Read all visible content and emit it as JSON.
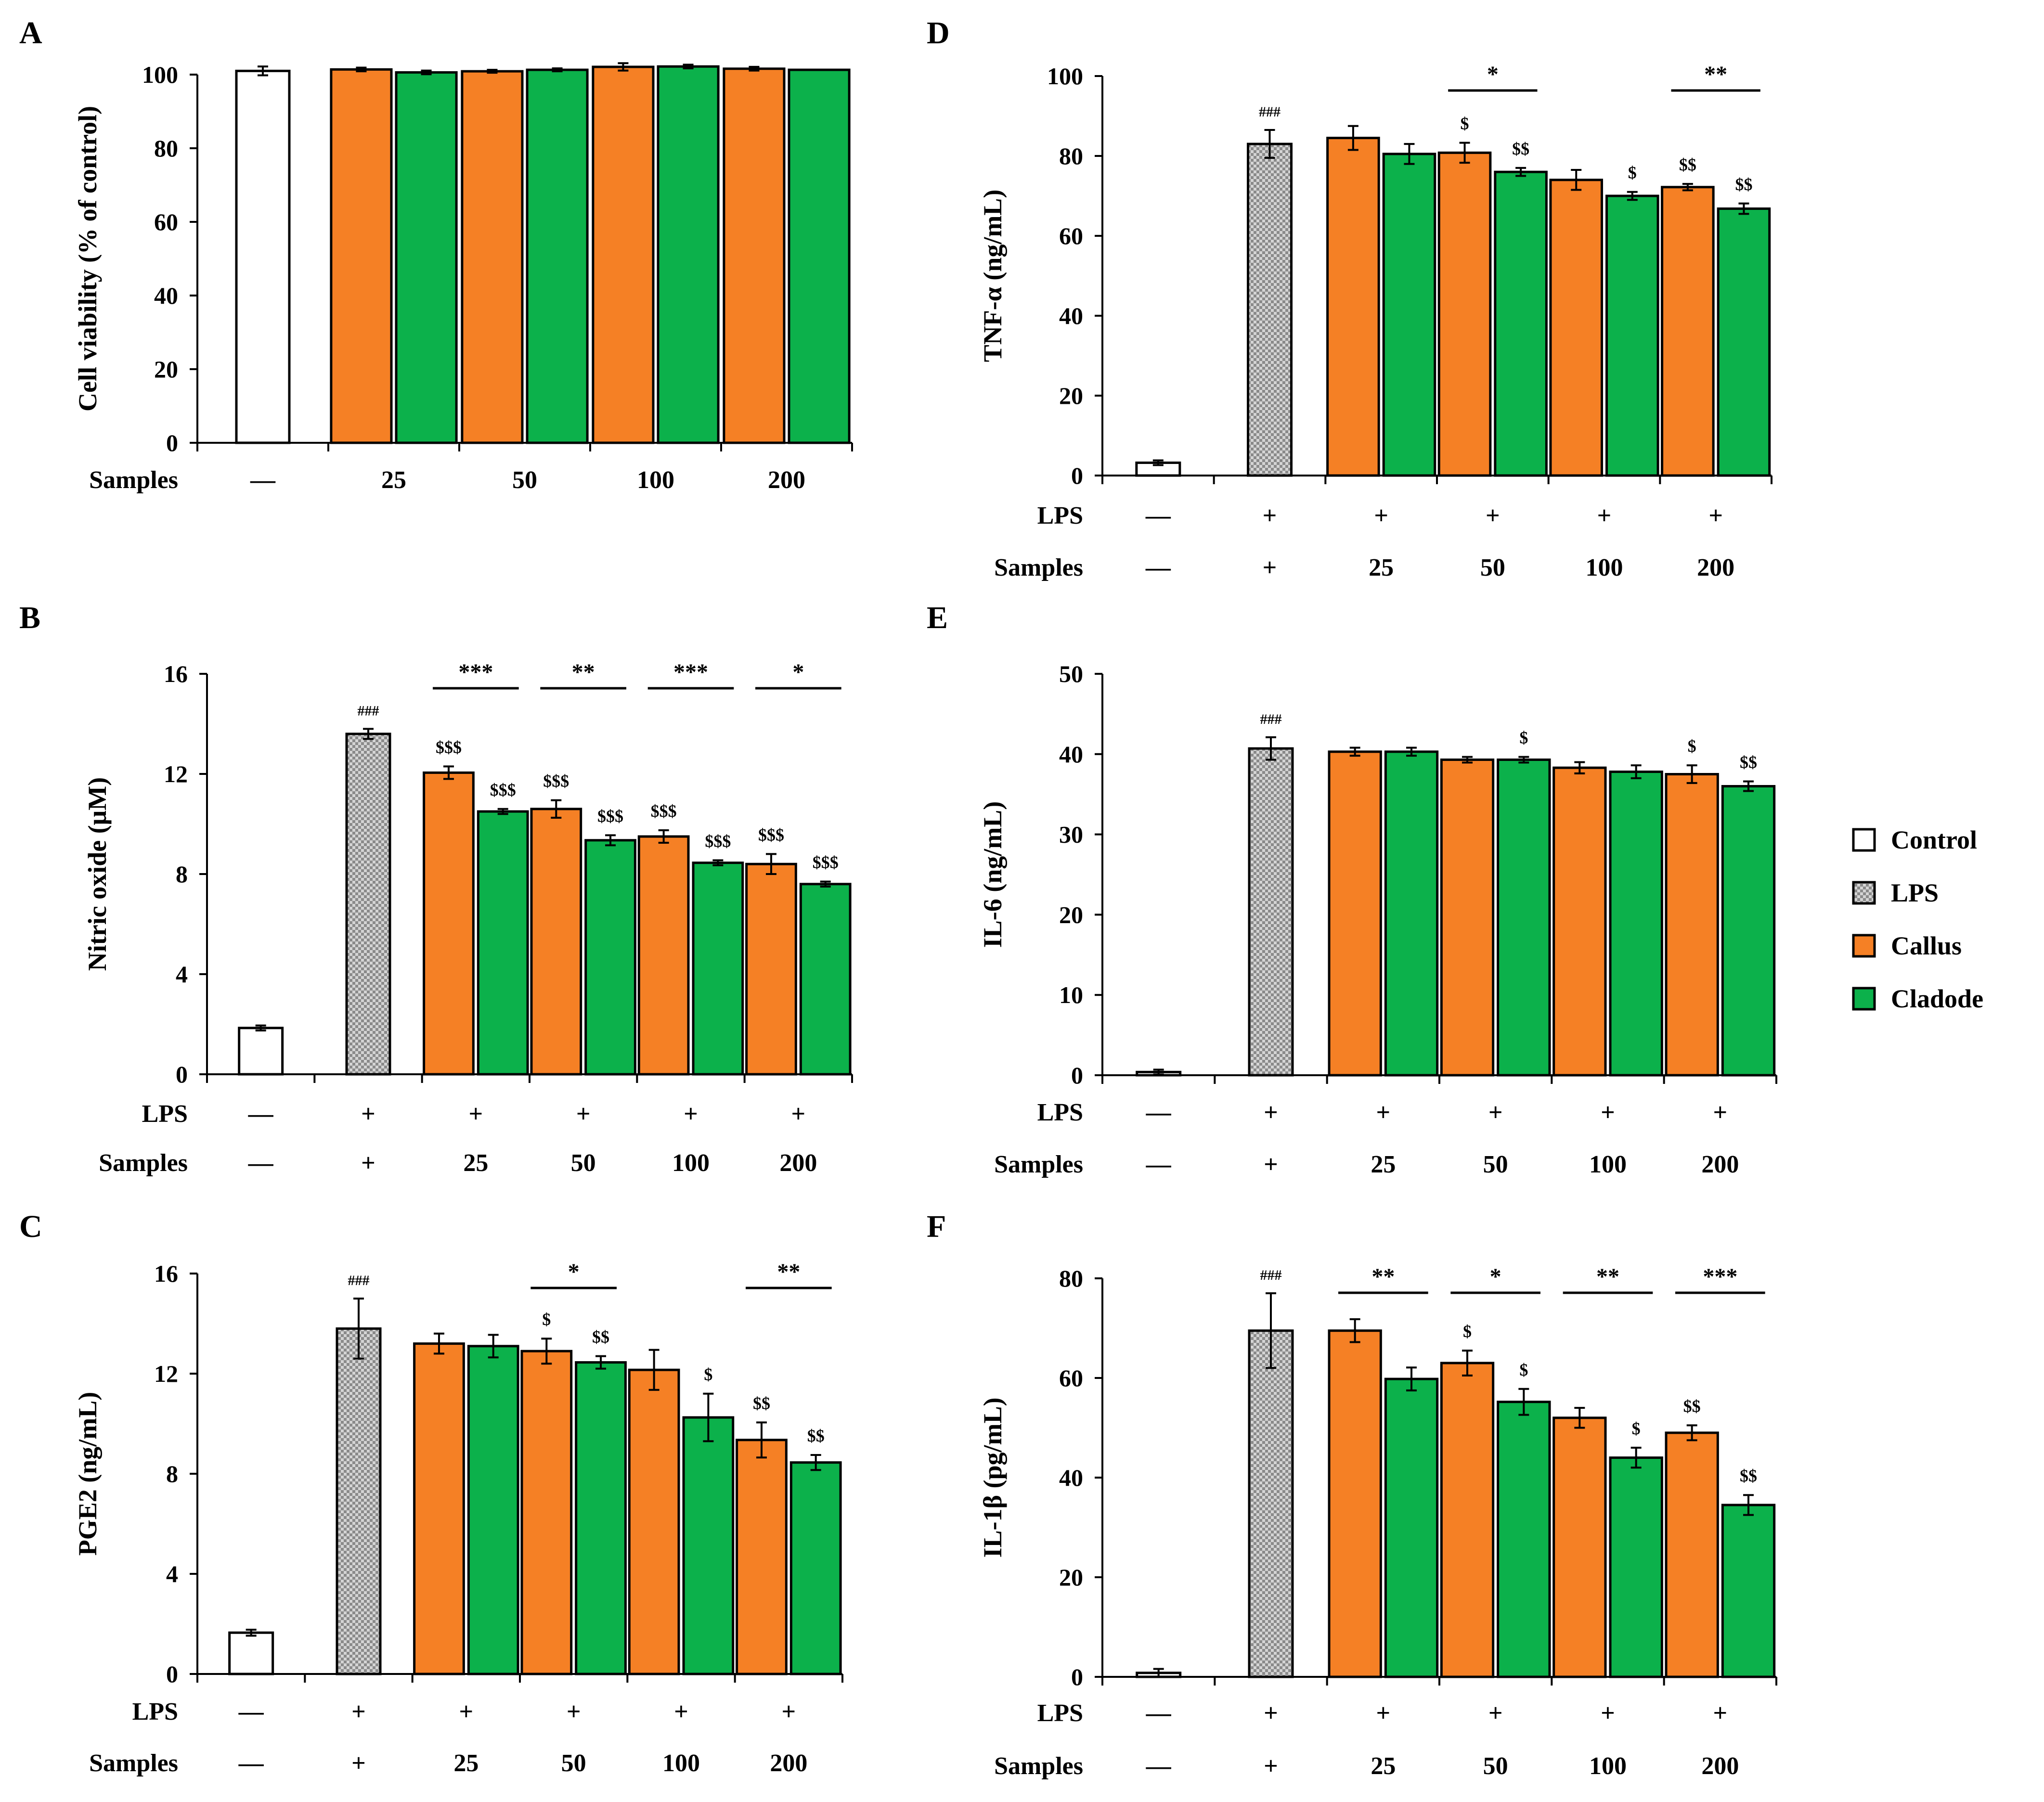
{
  "colors": {
    "control": "#ffffff",
    "lps": "#b9b9b9",
    "callus": "#f58025",
    "cladode": "#0cb14b",
    "outline": "#000000"
  },
  "legend": {
    "items": [
      {
        "label": "Control",
        "color": "#ffffff",
        "pattern": "none"
      },
      {
        "label": "LPS",
        "color": "#b9b9b9",
        "pattern": "checker"
      },
      {
        "label": "Callus",
        "color": "#f58025",
        "pattern": "none"
      },
      {
        "label": "Cladode",
        "color": "#0cb14b",
        "pattern": "none"
      }
    ]
  },
  "chart_data": [
    {
      "type": "bar",
      "panel": "A",
      "ylabel": "Cell viability (% of control)",
      "ylim": [
        0,
        100
      ],
      "yticks": [
        0,
        20,
        40,
        60,
        80,
        100
      ],
      "groups": [
        {
          "bars": [
            {
              "series": "Control",
              "value": 101,
              "err": 1.2
            }
          ]
        },
        {
          "bars": [
            {
              "series": "Callus",
              "value": 101.4,
              "err": 0.5
            },
            {
              "series": "Cladode",
              "value": 100.6,
              "err": 0.5
            }
          ]
        },
        {
          "bars": [
            {
              "series": "Callus",
              "value": 100.9,
              "err": 0.4
            },
            {
              "series": "Cladode",
              "value": 101.3,
              "err": 0.4
            }
          ]
        },
        {
          "bars": [
            {
              "series": "Callus",
              "value": 102.1,
              "err": 1.0
            },
            {
              "series": "Cladode",
              "value": 102.2,
              "err": 0.5
            }
          ]
        },
        {
          "bars": [
            {
              "series": "Callus",
              "value": 101.6,
              "err": 0.5
            },
            {
              "series": "Cladode",
              "value": 101.3,
              "err": 0
            }
          ]
        }
      ],
      "rows": [
        {
          "label": "Samples",
          "values": [
            "—",
            "25",
            "50",
            "100",
            "200"
          ]
        }
      ],
      "sig_lines": []
    },
    {
      "type": "bar",
      "panel": "B",
      "ylabel": "Nitric oxide (μM)",
      "ylim": [
        0,
        16
      ],
      "yticks": [
        0,
        4,
        8,
        12,
        16
      ],
      "groups": [
        {
          "bars": [
            {
              "series": "Control",
              "value": 1.85,
              "err": 0.1
            }
          ]
        },
        {
          "bars": [
            {
              "series": "LPS",
              "value": 13.6,
              "err": 0.2,
              "mark": "###"
            }
          ]
        },
        {
          "bars": [
            {
              "series": "Callus",
              "value": 12.05,
              "err": 0.25,
              "mark": "$$$"
            },
            {
              "series": "Cladode",
              "value": 10.5,
              "err": 0.1,
              "mark": "$$$"
            }
          ]
        },
        {
          "bars": [
            {
              "series": "Callus",
              "value": 10.6,
              "err": 0.35,
              "mark": "$$$"
            },
            {
              "series": "Cladode",
              "value": 9.35,
              "err": 0.2,
              "mark": "$$$"
            }
          ]
        },
        {
          "bars": [
            {
              "series": "Callus",
              "value": 9.5,
              "err": 0.25,
              "mark": "$$$"
            },
            {
              "series": "Cladode",
              "value": 8.45,
              "err": 0.1,
              "mark": "$$$"
            }
          ]
        },
        {
          "bars": [
            {
              "series": "Callus",
              "value": 8.4,
              "err": 0.4,
              "mark": "$$$"
            },
            {
              "series": "Cladode",
              "value": 7.6,
              "err": 0.1,
              "mark": "$$$"
            }
          ]
        }
      ],
      "rows": [
        {
          "label": "LPS",
          "values": [
            "—",
            "+",
            "+",
            "+",
            "+",
            "+"
          ]
        },
        {
          "label": "Samples",
          "values": [
            "—",
            "+",
            "25",
            "50",
            "100",
            "200"
          ]
        }
      ],
      "sig_lines": [
        {
          "group": 2,
          "text": "***"
        },
        {
          "group": 3,
          "text": "**"
        },
        {
          "group": 4,
          "text": "***"
        },
        {
          "group": 5,
          "text": "*"
        }
      ]
    },
    {
      "type": "bar",
      "panel": "C",
      "ylabel": "PGE2 (ng/mL)",
      "ylim": [
        0,
        16
      ],
      "yticks": [
        0,
        4,
        8,
        12,
        16
      ],
      "groups": [
        {
          "bars": [
            {
              "series": "Control",
              "value": 1.65,
              "err": 0.12
            }
          ]
        },
        {
          "bars": [
            {
              "series": "LPS",
              "value": 13.8,
              "err": 1.2,
              "mark": "###"
            }
          ]
        },
        {
          "bars": [
            {
              "series": "Callus",
              "value": 13.2,
              "err": 0.4
            },
            {
              "series": "Cladode",
              "value": 13.1,
              "err": 0.45
            }
          ]
        },
        {
          "bars": [
            {
              "series": "Callus",
              "value": 12.9,
              "err": 0.5,
              "mark": "$"
            },
            {
              "series": "Cladode",
              "value": 12.45,
              "err": 0.25,
              "mark": "$$"
            }
          ]
        },
        {
          "bars": [
            {
              "series": "Callus",
              "value": 12.15,
              "err": 0.8
            },
            {
              "series": "Cladode",
              "value": 10.25,
              "err": 0.95,
              "mark": "$"
            }
          ]
        },
        {
          "bars": [
            {
              "series": "Callus",
              "value": 9.35,
              "err": 0.7,
              "mark": "$$"
            },
            {
              "series": "Cladode",
              "value": 8.45,
              "err": 0.3,
              "mark": "$$"
            }
          ]
        }
      ],
      "rows": [
        {
          "label": "LPS",
          "values": [
            "—",
            "+",
            "+",
            "+",
            "+",
            "+"
          ]
        },
        {
          "label": "Samples",
          "values": [
            "—",
            "+",
            "25",
            "50",
            "100",
            "200"
          ]
        }
      ],
      "sig_lines": [
        {
          "group": 3,
          "text": "*"
        },
        {
          "group": 5,
          "text": "**"
        }
      ]
    },
    {
      "type": "bar",
      "panel": "D",
      "ylabel": "TNF-α (ng/mL)",
      "ylim": [
        0,
        100
      ],
      "yticks": [
        0,
        20,
        40,
        60,
        80,
        100
      ],
      "groups": [
        {
          "bars": [
            {
              "series": "Control",
              "value": 3.2,
              "err": 0.6
            }
          ]
        },
        {
          "bars": [
            {
              "series": "LPS",
              "value": 83,
              "err": 3.5,
              "mark": "###"
            }
          ]
        },
        {
          "bars": [
            {
              "series": "Callus",
              "value": 84.5,
              "err": 3
            },
            {
              "series": "Cladode",
              "value": 80.5,
              "err": 2.5
            }
          ]
        },
        {
          "bars": [
            {
              "series": "Callus",
              "value": 80.8,
              "err": 2.5,
              "mark": "$"
            },
            {
              "series": "Cladode",
              "value": 76,
              "err": 1,
              "mark": "$$"
            }
          ]
        },
        {
          "bars": [
            {
              "series": "Callus",
              "value": 74,
              "err": 2.5
            },
            {
              "series": "Cladode",
              "value": 70,
              "err": 1,
              "mark": "$"
            }
          ]
        },
        {
          "bars": [
            {
              "series": "Callus",
              "value": 72.2,
              "err": 0.8,
              "mark": "$$"
            },
            {
              "series": "Cladode",
              "value": 66.8,
              "err": 1.3,
              "mark": "$$"
            }
          ]
        }
      ],
      "rows": [
        {
          "label": "LPS",
          "values": [
            "—",
            "+",
            "+",
            "+",
            "+",
            "+"
          ]
        },
        {
          "label": "Samples",
          "values": [
            "—",
            "+",
            "25",
            "50",
            "100",
            "200"
          ]
        }
      ],
      "sig_lines": [
        {
          "group": 3,
          "text": "*"
        },
        {
          "group": 5,
          "text": "**"
        }
      ]
    },
    {
      "type": "bar",
      "panel": "E",
      "ylabel": "IL-6 (ng/mL)",
      "ylim": [
        0,
        50
      ],
      "yticks": [
        0,
        10,
        20,
        30,
        40,
        50
      ],
      "groups": [
        {
          "bars": [
            {
              "series": "Control",
              "value": 0.4,
              "err": 0.3
            }
          ]
        },
        {
          "bars": [
            {
              "series": "LPS",
              "value": 40.7,
              "err": 1.4,
              "mark": "###"
            }
          ]
        },
        {
          "bars": [
            {
              "series": "Callus",
              "value": 40.3,
              "err": 0.5
            },
            {
              "series": "Cladode",
              "value": 40.3,
              "err": 0.5
            }
          ]
        },
        {
          "bars": [
            {
              "series": "Callus",
              "value": 39.3,
              "err": 0.35
            },
            {
              "series": "Cladode",
              "value": 39.3,
              "err": 0.35,
              "mark": "$"
            }
          ]
        },
        {
          "bars": [
            {
              "series": "Callus",
              "value": 38.3,
              "err": 0.7
            },
            {
              "series": "Cladode",
              "value": 37.8,
              "err": 0.8
            }
          ]
        },
        {
          "bars": [
            {
              "series": "Callus",
              "value": 37.5,
              "err": 1.1,
              "mark": "$"
            },
            {
              "series": "Cladode",
              "value": 36,
              "err": 0.6,
              "mark": "$$"
            }
          ]
        }
      ],
      "rows": [
        {
          "label": "LPS",
          "values": [
            "—",
            "+",
            "+",
            "+",
            "+",
            "+"
          ]
        },
        {
          "label": "Samples",
          "values": [
            "—",
            "+",
            "25",
            "50",
            "100",
            "200"
          ]
        }
      ],
      "sig_lines": []
    },
    {
      "type": "bar",
      "panel": "F",
      "ylabel": "IL-1β (pg/mL)",
      "ylim": [
        0,
        80
      ],
      "yticks": [
        0,
        20,
        40,
        60,
        80
      ],
      "groups": [
        {
          "bars": [
            {
              "series": "Control",
              "value": 0.8,
              "err": 0.8
            }
          ]
        },
        {
          "bars": [
            {
              "series": "LPS",
              "value": 69.5,
              "err": 7.5,
              "mark": "###"
            }
          ]
        },
        {
          "bars": [
            {
              "series": "Callus",
              "value": 69.5,
              "err": 2.3
            },
            {
              "series": "Cladode",
              "value": 59.8,
              "err": 2.3
            }
          ]
        },
        {
          "bars": [
            {
              "series": "Callus",
              "value": 63,
              "err": 2.5,
              "mark": "$"
            },
            {
              "series": "Cladode",
              "value": 55.2,
              "err": 2.6,
              "mark": "$"
            }
          ]
        },
        {
          "bars": [
            {
              "series": "Callus",
              "value": 52,
              "err": 2
            },
            {
              "series": "Cladode",
              "value": 44,
              "err": 2,
              "mark": "$"
            }
          ]
        },
        {
          "bars": [
            {
              "series": "Callus",
              "value": 49,
              "err": 1.5,
              "mark": "$$"
            },
            {
              "series": "Cladode",
              "value": 34.5,
              "err": 2,
              "mark": "$$"
            }
          ]
        }
      ],
      "rows": [
        {
          "label": "LPS",
          "values": [
            "—",
            "+",
            "+",
            "+",
            "+",
            "+"
          ]
        },
        {
          "label": "Samples",
          "values": [
            "—",
            "+",
            "25",
            "50",
            "100",
            "200"
          ]
        }
      ],
      "sig_lines": [
        {
          "group": 2,
          "text": "**"
        },
        {
          "group": 3,
          "text": "*"
        },
        {
          "group": 4,
          "text": "**"
        },
        {
          "group": 5,
          "text": "***"
        }
      ]
    }
  ]
}
